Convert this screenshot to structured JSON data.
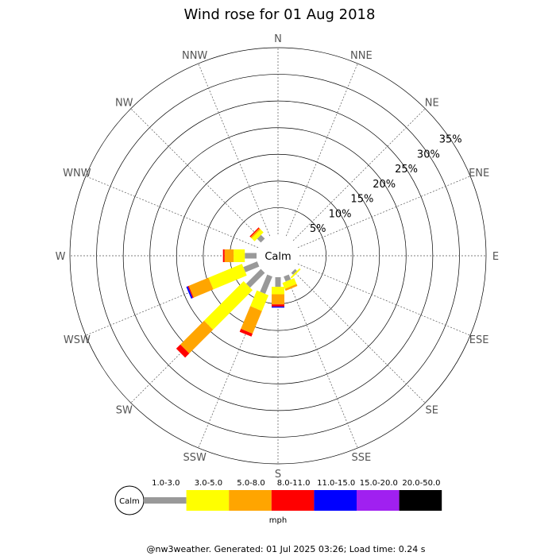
{
  "chart_data": {
    "type": "windrose",
    "title": "Wind rose for 01 Aug 2018",
    "calm_label": "Calm",
    "directions": [
      "N",
      "NNE",
      "NE",
      "ENE",
      "E",
      "ESE",
      "SE",
      "SSE",
      "S",
      "SSW",
      "SW",
      "WSW",
      "W",
      "WNW",
      "NW",
      "NNW"
    ],
    "radial_ticks": [
      5,
      10,
      15,
      20,
      25,
      30,
      35
    ],
    "radial_tick_labels": [
      "5%",
      "10%",
      "15%",
      "20%",
      "25%",
      "30%",
      "35%"
    ],
    "r_max": 35,
    "speed_bins": [
      "1.0-3.0",
      "3.0-5.0",
      "5.0-8.0",
      "8.0-11.0",
      "11.0-15.0",
      "15.0-20.0",
      "20.0-50.0"
    ],
    "bin_colors": [
      "#999999",
      "#ffff00",
      "#ffa500",
      "#ff0000",
      "#0000ff",
      "#a020f0",
      "#000000"
    ],
    "unit": "mph",
    "values": {
      "N": [
        0,
        0,
        0,
        0,
        0,
        0,
        0
      ],
      "NNE": [
        0,
        0,
        0,
        0,
        0,
        0,
        0
      ],
      "NE": [
        0,
        0,
        0,
        0,
        0,
        0,
        0
      ],
      "ENE": [
        0,
        0,
        0,
        0,
        0,
        0,
        0
      ],
      "E": [
        0,
        0,
        0,
        0,
        0,
        0,
        0
      ],
      "ESE": [
        0,
        0,
        0,
        0,
        0,
        0,
        0
      ],
      "SE": [
        0.5,
        0.3,
        0,
        0,
        0,
        0,
        0
      ],
      "SSE": [
        1.0,
        1.2,
        0.4,
        0,
        0,
        0,
        0
      ],
      "S": [
        1.8,
        1.4,
        1.9,
        0.4,
        0.2,
        0,
        0
      ],
      "SSW": [
        3.5,
        3.2,
        4.6,
        0.6,
        0,
        0,
        0
      ],
      "SW": [
        3.9,
        10.5,
        6.3,
        1.1,
        0,
        0,
        0
      ],
      "WSW": [
        2.8,
        6.8,
        4.0,
        0.2,
        0.3,
        0,
        0
      ],
      "W": [
        2.2,
        2.1,
        1.7,
        0.3,
        0,
        0,
        0
      ],
      "WNW": [
        0,
        0,
        0,
        0,
        0,
        0,
        0
      ],
      "NW": [
        1.0,
        0.8,
        0.3,
        0.2,
        0,
        0,
        0
      ],
      "NNW": [
        0,
        0,
        0,
        0,
        0,
        0,
        0
      ]
    }
  },
  "footer": "@nw3weather. Generated: 01 Jul 2025 03:26; Load time: 0.24 s"
}
